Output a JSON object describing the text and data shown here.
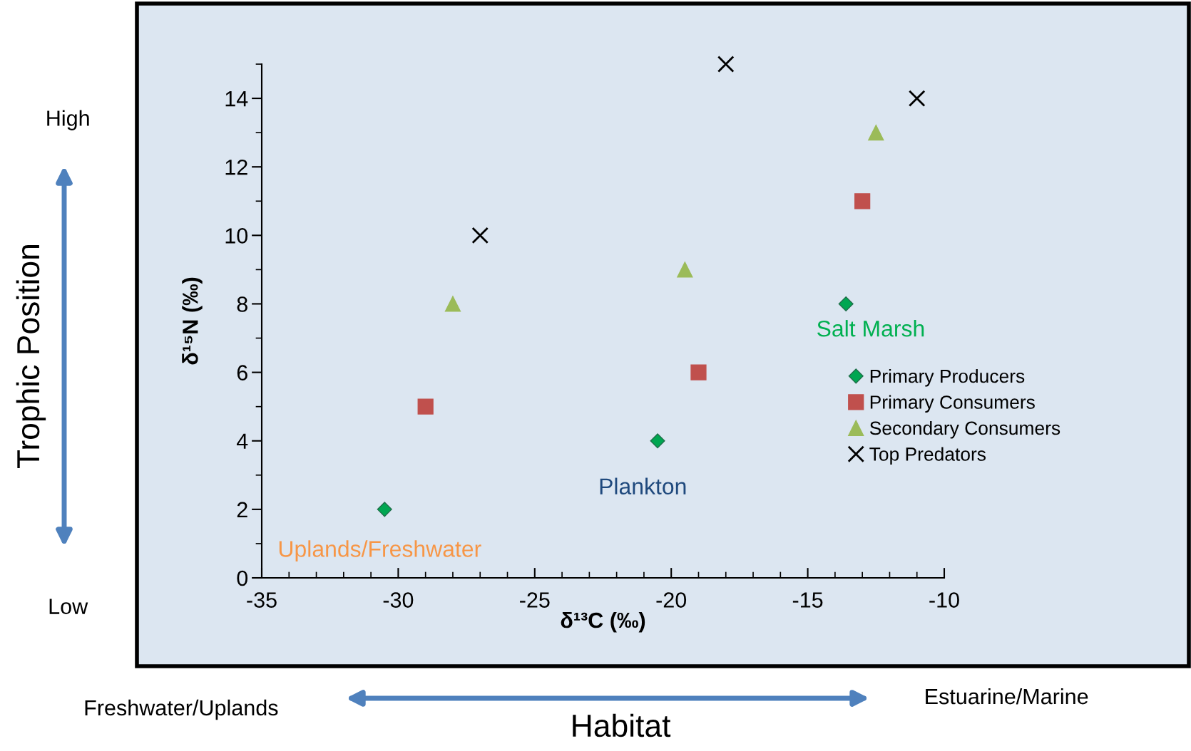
{
  "chart_data": {
    "type": "scatter",
    "xlabel": "δ¹³C (‰)",
    "ylabel": "δ¹⁵N (‰)",
    "xlim": [
      -35,
      -10
    ],
    "xticks": [
      -35,
      -30,
      -25,
      -20,
      -15,
      -10
    ],
    "ylim": [
      0,
      15
    ],
    "yticks": [
      0,
      2,
      4,
      6,
      8,
      10,
      12,
      14
    ],
    "grid": false,
    "legend": "right",
    "series": [
      {
        "name": "Primary Producers",
        "color": "#00a651",
        "marker": "diamond",
        "x": [
          -30.5,
          -20.5,
          -13.6
        ],
        "values": [
          2,
          4,
          8
        ]
      },
      {
        "name": "Primary Consumers",
        "color": "#c0504d",
        "marker": "square",
        "x": [
          -29,
          -19,
          -13
        ],
        "values": [
          5,
          6,
          11
        ]
      },
      {
        "name": "Secondary Consumers",
        "color": "#9bbb59",
        "marker": "triangle",
        "x": [
          -28,
          -19.5,
          -12.5
        ],
        "values": [
          8,
          9,
          13
        ]
      },
      {
        "name": "Top Predators",
        "color": "#000000",
        "marker": "cross",
        "x": [
          -27,
          -18,
          -11
        ],
        "values": [
          10,
          15,
          14
        ]
      }
    ],
    "annotations": [
      {
        "text": "Uplands/Freshwater",
        "x": -30.5,
        "y": 2
      },
      {
        "text": "Plankton",
        "x": -20.5,
        "y": 4
      },
      {
        "text": "Salt Marsh",
        "x": -13.6,
        "y": 8
      },
      "High",
      "Low",
      "Trophic Position",
      "Freshwater/Uplands",
      "Estuarine/Marine",
      "Habitat"
    ]
  }
}
